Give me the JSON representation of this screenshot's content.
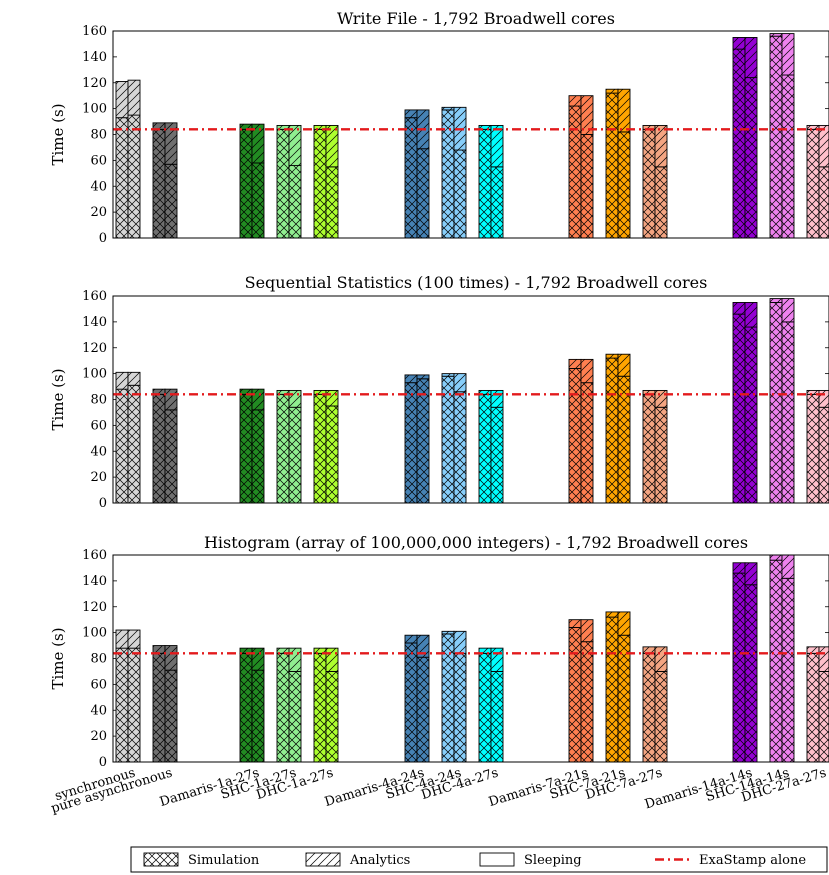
{
  "chart_data": [
    {
      "type": "bar",
      "title": "Write File - 1,792 Broadwell cores",
      "ylabel": "Time (s)",
      "ylim": [
        0,
        160
      ],
      "yticks": [
        0,
        20,
        40,
        60,
        80,
        100,
        120,
        140,
        160
      ],
      "reference_line": 84,
      "bars": [
        {
          "category": "synchronous",
          "values": [
            [
              93,
              28,
              0
            ],
            [
              95,
              27,
              0
            ]
          ]
        },
        {
          "category": "pure asynchronous",
          "values": [
            [
              84,
              5,
              0
            ],
            [
              57,
              32,
              0
            ]
          ]
        },
        {
          "category": "Damaris-1a-27s",
          "values": [
            [
              84,
              4,
              0
            ],
            [
              58,
              30,
              0
            ]
          ]
        },
        {
          "category": "SHC-1a-27s",
          "values": [
            [
              84,
              3,
              0
            ],
            [
              56,
              31,
              0
            ]
          ]
        },
        {
          "category": "DHC-1a-27s",
          "values": [
            [
              84,
              3,
              0
            ],
            [
              55,
              32,
              0
            ]
          ]
        },
        {
          "category": "Damaris-4a-24s",
          "values": [
            [
              93,
              6,
              0
            ],
            [
              69,
              30,
              0
            ]
          ]
        },
        {
          "category": "SHC-4a-24s",
          "values": [
            [
              99,
              2,
              0
            ],
            [
              68,
              33,
              0
            ]
          ]
        },
        {
          "category": "DHC-4a-27s",
          "values": [
            [
              84,
              3,
              0
            ],
            [
              55,
              32,
              0
            ]
          ]
        },
        {
          "category": "Damaris-7a-21s",
          "values": [
            [
              102,
              8,
              0
            ],
            [
              80,
              30,
              0
            ]
          ]
        },
        {
          "category": "SHC-7a-21s",
          "values": [
            [
              112,
              3,
              0
            ],
            [
              82,
              33,
              0
            ]
          ]
        },
        {
          "category": "DHC-7a-27s",
          "values": [
            [
              84,
              3,
              0
            ],
            [
              55,
              32,
              0
            ]
          ]
        },
        {
          "category": "Damaris-14a-14s",
          "values": [
            [
              146,
              9,
              0
            ],
            [
              124,
              31,
              0
            ]
          ]
        },
        {
          "category": "SHC-14a-14s",
          "values": [
            [
              156,
              2,
              0
            ],
            [
              126,
              32,
              0
            ]
          ]
        },
        {
          "category": "DHC-27a-27s",
          "values": [
            [
              84,
              3,
              0
            ],
            [
              55,
              32,
              0
            ]
          ]
        }
      ]
    },
    {
      "type": "bar",
      "title": "Sequential Statistics (100 times) - 1,792 Broadwell cores",
      "ylabel": "Time (s)",
      "ylim": [
        0,
        160
      ],
      "yticks": [
        0,
        20,
        40,
        60,
        80,
        100,
        120,
        140,
        160
      ],
      "reference_line": 84,
      "bars": [
        {
          "category": "synchronous",
          "values": [
            [
              88,
              13,
              0
            ],
            [
              91,
              10,
              0
            ]
          ]
        },
        {
          "category": "pure asynchronous",
          "values": [
            [
              84,
              4,
              0
            ],
            [
              72,
              16,
              0
            ]
          ]
        },
        {
          "category": "Damaris-1a-27s",
          "values": [
            [
              84,
              4,
              0
            ],
            [
              72,
              16,
              0
            ]
          ]
        },
        {
          "category": "SHC-1a-27s",
          "values": [
            [
              84,
              3,
              0
            ],
            [
              74,
              13,
              0
            ]
          ]
        },
        {
          "category": "DHC-1a-27s",
          "values": [
            [
              84,
              3,
              0
            ],
            [
              75,
              12,
              0
            ]
          ]
        },
        {
          "category": "Damaris-4a-24s",
          "values": [
            [
              93,
              6,
              0
            ],
            [
              96,
              3,
              0
            ]
          ]
        },
        {
          "category": "SHC-4a-24s",
          "values": [
            [
              98,
              2,
              0
            ],
            [
              86,
              14,
              0
            ]
          ]
        },
        {
          "category": "DHC-4a-27s",
          "values": [
            [
              84,
              3,
              0
            ],
            [
              74,
              13,
              0
            ]
          ]
        },
        {
          "category": "Damaris-7a-21s",
          "values": [
            [
              104,
              7,
              0
            ],
            [
              93,
              18,
              0
            ]
          ]
        },
        {
          "category": "SHC-7a-21s",
          "values": [
            [
              112,
              3,
              0
            ],
            [
              98,
              17,
              0
            ]
          ]
        },
        {
          "category": "DHC-7a-27s",
          "values": [
            [
              84,
              3,
              0
            ],
            [
              74,
              13,
              0
            ]
          ]
        },
        {
          "category": "Damaris-14a-14s",
          "values": [
            [
              146,
              9,
              0
            ],
            [
              136,
              19,
              0
            ]
          ]
        },
        {
          "category": "SHC-14a-14s",
          "values": [
            [
              155,
              3,
              0
            ],
            [
              140,
              18,
              0
            ]
          ]
        },
        {
          "category": "DHC-27a-27s",
          "values": [
            [
              84,
              3,
              0
            ],
            [
              74,
              13,
              0
            ]
          ]
        }
      ]
    },
    {
      "type": "bar",
      "title": "Histogram (array of 100,000,000 integers) - 1,792 Broadwell cores",
      "ylabel": "Time (s)",
      "ylim": [
        0,
        160
      ],
      "yticks": [
        0,
        20,
        40,
        60,
        80,
        100,
        120,
        140,
        160
      ],
      "reference_line": 84,
      "bars": [
        {
          "category": "synchronous",
          "values": [
            [
              88,
              14,
              0
            ],
            [
              88,
              14,
              0
            ]
          ]
        },
        {
          "category": "pure asynchronous",
          "values": [
            [
              84,
              6,
              0
            ],
            [
              71,
              19,
              0
            ]
          ]
        },
        {
          "category": "Damaris-1a-27s",
          "values": [
            [
              84,
              4,
              0
            ],
            [
              71,
              17,
              0
            ]
          ]
        },
        {
          "category": "SHC-1a-27s",
          "values": [
            [
              84,
              4,
              0
            ],
            [
              70,
              18,
              0
            ]
          ]
        },
        {
          "category": "DHC-1a-27s",
          "values": [
            [
              84,
              4,
              0
            ],
            [
              70,
              18,
              0
            ]
          ]
        },
        {
          "category": "Damaris-4a-24s",
          "values": [
            [
              92,
              6,
              0
            ],
            [
              81,
              17,
              0
            ]
          ]
        },
        {
          "category": "SHC-4a-24s",
          "values": [
            [
              99,
              2,
              0
            ],
            [
              84,
              17,
              0
            ]
          ]
        },
        {
          "category": "DHC-4a-27s",
          "values": [
            [
              84,
              4,
              0
            ],
            [
              70,
              18,
              0
            ]
          ]
        },
        {
          "category": "Damaris-7a-21s",
          "values": [
            [
              104,
              6,
              0
            ],
            [
              93,
              17,
              0
            ]
          ]
        },
        {
          "category": "SHC-7a-21s",
          "values": [
            [
              112,
              4,
              0
            ],
            [
              98,
              18,
              0
            ]
          ]
        },
        {
          "category": "DHC-7a-27s",
          "values": [
            [
              84,
              5,
              0
            ],
            [
              70,
              19,
              0
            ]
          ]
        },
        {
          "category": "Damaris-14a-14s",
          "values": [
            [
              146,
              8,
              0
            ],
            [
              137,
              17,
              0
            ]
          ]
        },
        {
          "category": "SHC-14a-14s",
          "values": [
            [
              156,
              4,
              0
            ],
            [
              142,
              18,
              0
            ]
          ]
        },
        {
          "category": "DHC-27a-27s",
          "values": [
            [
              84,
              5,
              0
            ],
            [
              70,
              19,
              0
            ]
          ]
        }
      ]
    }
  ],
  "colors": {
    "synchronous": "#d6d6d6",
    "pure asynchronous": "#6f6f6f",
    "Damaris-1a-27s": "#228b22",
    "SHC-1a-27s": "#90ee90",
    "DHC-1a-27s": "#adff2f",
    "Damaris-4a-24s": "#4682b4",
    "SHC-4a-24s": "#87cefa",
    "DHC-4a-27s": "#00ffff",
    "Damaris-7a-21s": "#ff7f50",
    "SHC-7a-21s": "#ffa500",
    "DHC-7a-27s": "#f4a582",
    "Damaris-14a-14s": "#9400d3",
    "SHC-14a-14s": "#ee82ee",
    "DHC-27a-27s": "#ffc0cb",
    "reference_line": "#e31a1c"
  },
  "legend": {
    "items": [
      {
        "label": "Simulation",
        "pattern": "crosshatch"
      },
      {
        "label": "Analytics",
        "pattern": "diagonal"
      },
      {
        "label": "Sleeping",
        "pattern": "none"
      },
      {
        "label": "ExaStamp alone",
        "pattern": "dash-dot-line"
      }
    ],
    "placement": "bottom-center"
  }
}
